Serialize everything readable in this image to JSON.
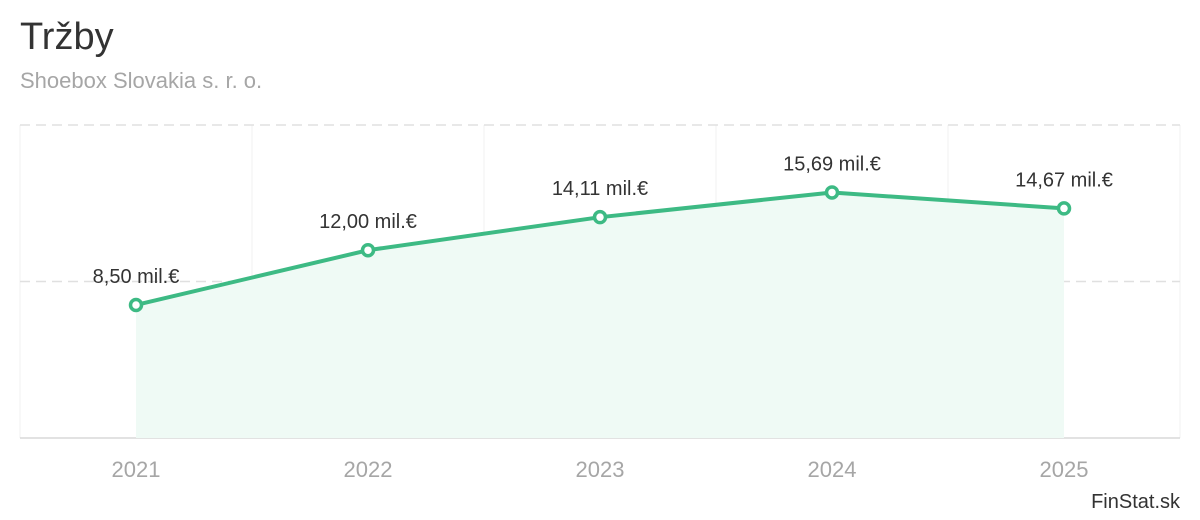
{
  "chart_data": {
    "type": "line",
    "title": "Tržby",
    "subtitle": "Shoebox Slovakia s. r. o.",
    "categories": [
      "2021",
      "2022",
      "2023",
      "2024",
      "2025"
    ],
    "values": [
      8.5,
      12.0,
      14.11,
      15.69,
      14.67
    ],
    "value_labels": [
      "8,50 mil.€",
      "12,00 mil.€",
      "14,11 mil.€",
      "15,69 mil.€",
      "14,67 mil.€"
    ],
    "xlabel": "",
    "ylabel": "",
    "ylim": [
      0,
      20
    ],
    "y_gridlines": [
      10,
      20
    ],
    "grid": true,
    "area_fill": true,
    "line_color": "#3dba84",
    "fill_color": "#effaf5",
    "grid_color": "#e0e0e0"
  },
  "credit": "FinStat.sk"
}
